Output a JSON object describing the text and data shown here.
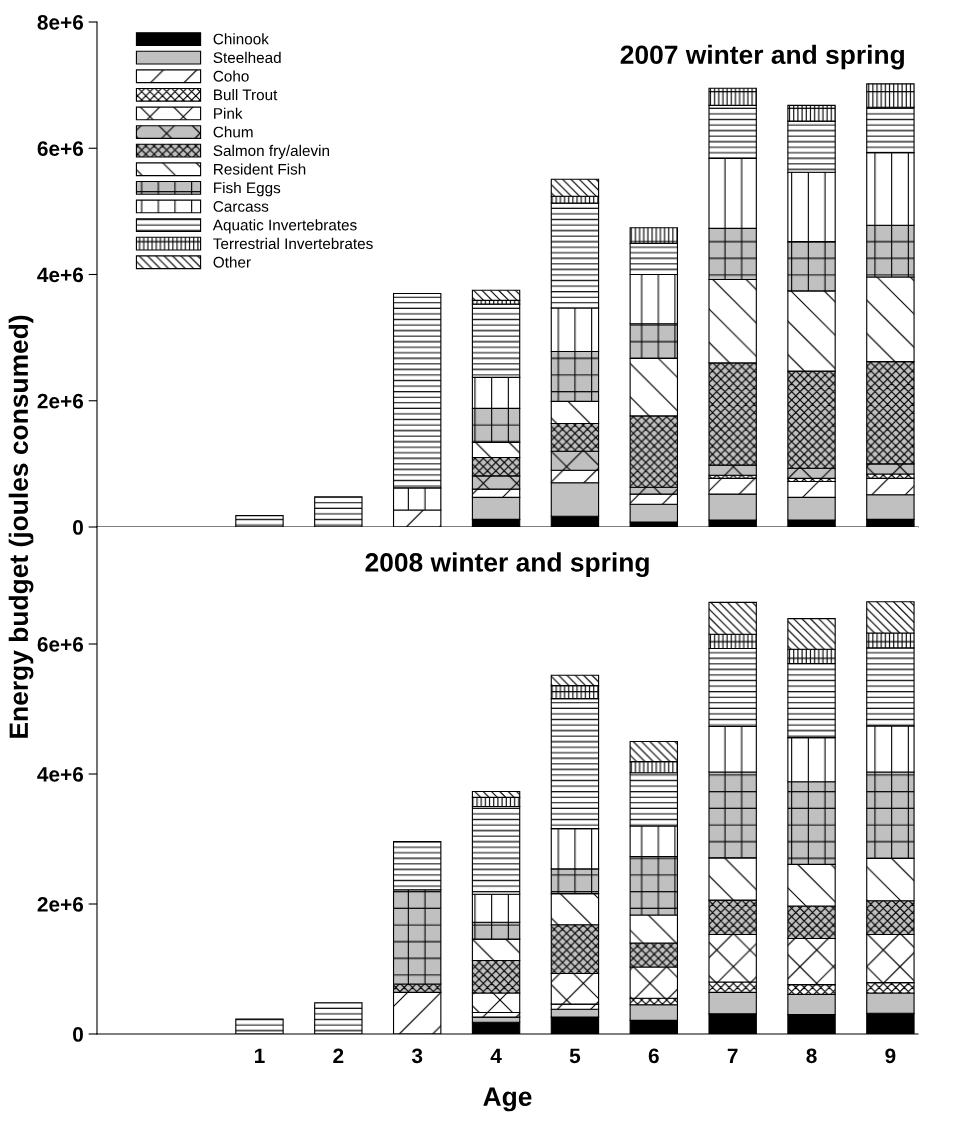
{
  "chart_data": [
    {
      "type": "bar",
      "stacked": true,
      "title": "2007 winter and spring",
      "ylabel": "Energy budget (joules consumed)",
      "categories": [
        "1",
        "2",
        "3",
        "4",
        "5",
        "6",
        "7",
        "8",
        "9"
      ],
      "ylim": [
        0,
        8000000
      ],
      "yticks": [
        {
          "value": 0,
          "label": "0"
        },
        {
          "value": 2000000,
          "label": "2e+6"
        },
        {
          "value": 4000000,
          "label": "4e+6"
        },
        {
          "value": 6000000,
          "label": "6e+6"
        },
        {
          "value": 8000000,
          "label": "8e+6"
        }
      ],
      "tick_labels": "y",
      "legend": "top left",
      "grid": false,
      "series": [
        {
          "name": "Chinook",
          "color": "#000000",
          "values": [
            null,
            null,
            null,
            120000,
            170000,
            80000,
            110000,
            110000,
            120000
          ]
        },
        {
          "name": "Steelhead",
          "color": "#c0c0c0",
          "values": [
            null,
            null,
            null,
            350000,
            530000,
            280000,
            410000,
            360000,
            390000
          ]
        },
        {
          "name": "Coho",
          "color": "#ffffff",
          "values": [
            null,
            null,
            270000,
            130000,
            200000,
            160000,
            250000,
            250000,
            260000
          ]
        },
        {
          "name": "Bull Trout",
          "color": "#ffffff",
          "values": [
            null,
            null,
            null,
            null,
            null,
            null,
            50000,
            50000,
            70000
          ]
        },
        {
          "name": "Pink",
          "color": "#ffffff",
          "values": [
            null,
            null,
            null,
            null,
            null,
            null,
            null,
            null,
            null
          ]
        },
        {
          "name": "Chum",
          "color": "#c0c0c0",
          "values": [
            null,
            null,
            null,
            210000,
            300000,
            110000,
            160000,
            160000,
            160000
          ]
        },
        {
          "name": "Salmon fry/alevin",
          "color": "#c0c0c0",
          "values": [
            null,
            null,
            null,
            290000,
            440000,
            1130000,
            1620000,
            1540000,
            1620000
          ]
        },
        {
          "name": "Resident Fish",
          "color": "#ffffff",
          "values": [
            null,
            null,
            null,
            240000,
            350000,
            910000,
            1320000,
            1270000,
            1340000
          ]
        },
        {
          "name": "Fish Eggs",
          "color": "#c0c0c0",
          "values": [
            null,
            null,
            null,
            540000,
            790000,
            550000,
            810000,
            780000,
            820000
          ]
        },
        {
          "name": "Carcass",
          "color": "#ffffff",
          "values": [
            null,
            null,
            350000,
            490000,
            690000,
            780000,
            1110000,
            1100000,
            1150000
          ]
        },
        {
          "name": "Aquatic Invertebrates",
          "color": "#ffffff",
          "values": [
            180000,
            480000,
            3080000,
            1160000,
            1660000,
            490000,
            840000,
            810000,
            720000
          ]
        },
        {
          "name": "Terrestrial Invertebrates",
          "color": "#ffffff",
          "values": [
            null,
            null,
            null,
            60000,
            110000,
            250000,
            270000,
            250000,
            370000
          ]
        },
        {
          "name": "Other",
          "color": "#ffffff",
          "values": [
            null,
            null,
            null,
            160000,
            270000,
            null,
            null,
            null,
            null
          ]
        }
      ]
    },
    {
      "type": "bar",
      "stacked": true,
      "title": "2008 winter and spring",
      "xlabel": "Age",
      "categories": [
        "1",
        "2",
        "3",
        "4",
        "5",
        "6",
        "7",
        "8",
        "9"
      ],
      "ylim": [
        0,
        7800000
      ],
      "yticks": [
        {
          "value": 0,
          "label": "0"
        },
        {
          "value": 2000000,
          "label": "2e+6"
        },
        {
          "value": 4000000,
          "label": "4e+6"
        },
        {
          "value": 6000000,
          "label": "6e+6"
        }
      ],
      "grid": false,
      "series": [
        {
          "color": "#000000",
          "values": [
            null,
            null,
            null,
            180000,
            260000,
            210000,
            310000,
            300000,
            320000
          ]
        },
        {
          "color": "#c0c0c0",
          "values": [
            null,
            null,
            null,
            80000,
            120000,
            240000,
            330000,
            310000,
            310000
          ]
        },
        {
          "color": "#ffffff",
          "values": [
            null,
            null,
            640000,
            70000,
            80000,
            null,
            null,
            null,
            null
          ]
        },
        {
          "color": "#ffffff",
          "values": [
            null,
            null,
            null,
            null,
            null,
            100000,
            160000,
            150000,
            160000
          ]
        },
        {
          "color": "#ffffff",
          "values": [
            null,
            null,
            null,
            300000,
            470000,
            480000,
            730000,
            710000,
            740000
          ]
        },
        {
          "color": "#c0c0c0",
          "values": [
            null,
            null,
            130000,
            500000,
            750000,
            370000,
            530000,
            500000,
            520000
          ]
        },
        {
          "color": "#ffffff",
          "values": [
            null,
            null,
            null,
            330000,
            480000,
            430000,
            650000,
            640000,
            650000
          ]
        },
        {
          "color": "#c0c0c0",
          "values": [
            null,
            null,
            1450000,
            260000,
            380000,
            900000,
            1320000,
            1270000,
            1330000
          ]
        },
        {
          "color": "#ffffff",
          "values": [
            null,
            null,
            null,
            430000,
            620000,
            470000,
            700000,
            680000,
            710000
          ]
        },
        {
          "color": "#ffffff",
          "values": [
            230000,
            480000,
            740000,
            1350000,
            2000000,
            820000,
            1200000,
            1140000,
            1200000
          ]
        },
        {
          "color": "#ffffff",
          "values": [
            null,
            null,
            null,
            140000,
            200000,
            170000,
            220000,
            220000,
            230000
          ]
        },
        {
          "color": "#ffffff",
          "values": [
            null,
            null,
            null,
            90000,
            160000,
            310000,
            490000,
            470000,
            480000
          ]
        }
      ]
    }
  ]
}
